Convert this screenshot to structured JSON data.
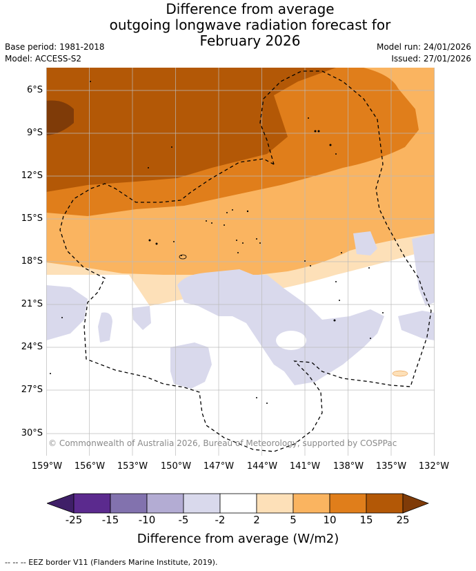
{
  "title": {
    "line1": "Difference from average",
    "line2": "outgoing longwave radiation forecast for",
    "line3": "February 2026"
  },
  "meta": {
    "base_period": "Base period: 1981-2018",
    "model": "Model: ACCESS-S2",
    "model_run": "Model run: 24/01/2026",
    "issued": "Issued: 27/01/2026"
  },
  "map": {
    "copyright": "© Commonwealth of Australia 2026, Bureau of Meteorology, supported by COSPPac",
    "lat_labels": [
      "6°S",
      "9°S",
      "12°S",
      "15°S",
      "18°S",
      "21°S",
      "24°S",
      "27°S",
      "30°S"
    ],
    "lon_labels": [
      "159°W",
      "156°W",
      "153°W",
      "150°W",
      "147°W",
      "144°W",
      "141°W",
      "138°W",
      "135°W",
      "132°W"
    ]
  },
  "colorbar": {
    "ticks": [
      "-25",
      "-15",
      "-10",
      "-5",
      "-2",
      "2",
      "5",
      "10",
      "15",
      "25"
    ],
    "colors": [
      "#3f1f68",
      "#5b2a8e",
      "#8272ae",
      "#b3acd3",
      "#d9d9ec",
      "#ffffff",
      "#fde0b8",
      "#fab460",
      "#e07e1b",
      "#b35806",
      "#7f3b08"
    ],
    "title": "Difference from average (W/m2)"
  },
  "footer": {
    "legend": "--  --  -- EEZ border V11 (Flanders Marine Institute, 2019)."
  }
}
